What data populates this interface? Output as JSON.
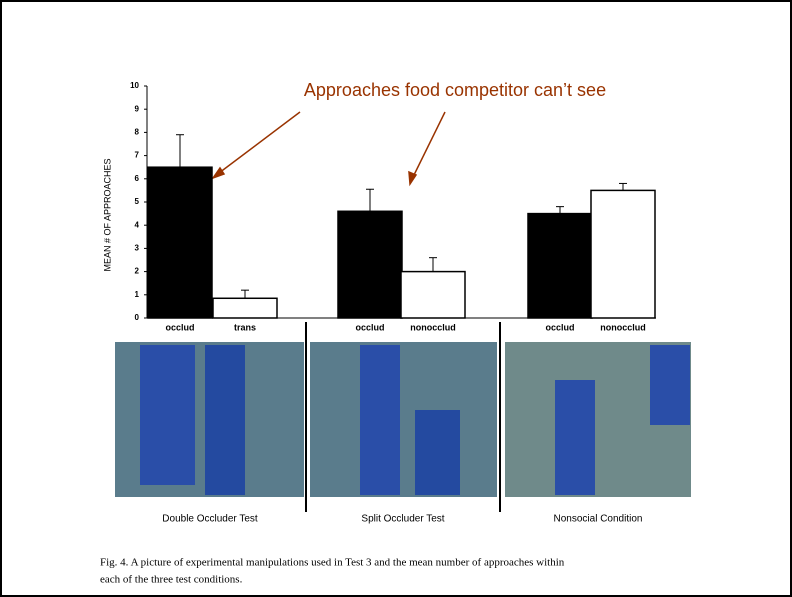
{
  "chart_data": {
    "type": "bar",
    "annotation": "Approaches food competitor can’t see",
    "y_label": "MEAN # OF APPROACHES",
    "categories": [
      "occlud",
      "trans",
      "occlud",
      "nonocclud",
      "occlud",
      "nonocclud"
    ],
    "values": [
      6.5,
      0.85,
      4.6,
      2.0,
      4.5,
      5.5
    ],
    "errors": [
      1.4,
      0.35,
      0.95,
      0.6,
      0.3,
      0.3
    ],
    "colors": [
      "#000000",
      "#ffffff",
      "#000000",
      "#ffffff",
      "#000000",
      "#ffffff"
    ],
    "ylim": [
      0,
      10
    ],
    "yticks": [
      0,
      1,
      2,
      3,
      4,
      5,
      6,
      7,
      8,
      9,
      10
    ]
  },
  "groups": [
    "Double Occluder Test",
    "Split Occluder Test",
    "Nonsocial Condition"
  ],
  "caption": [
    "Fig. 4.  A picture of experimental manipulations used in Test 3 and the mean number of approaches within",
    "each of the three test conditions."
  ]
}
